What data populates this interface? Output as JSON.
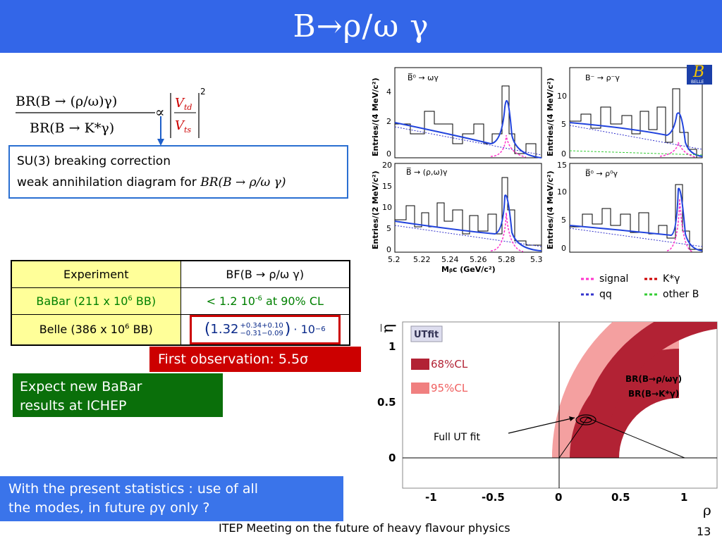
{
  "title": "B→ρ/ω γ",
  "formula": {
    "numerator": "BR(B → (ρ/ω)γ)",
    "denominator": "BR(B → K*γ)",
    "proportional": "∝",
    "vtd": "V",
    "vtd_sub": "td",
    "vts": "V",
    "vts_sub": "ts",
    "power": "2"
  },
  "note_box": {
    "line1": "SU(3) breaking correction",
    "line2_prefix": "weak annihilation diagram for ",
    "line2_italic": "BR(B → ρ/ω γ)"
  },
  "table": {
    "header": [
      "Experiment",
      "BF(B → ρ/ω γ)"
    ],
    "babar_label": "BaBar (211 x 10",
    "babar_exp": "6",
    "babar_tail": " BB)",
    "babar_value": "< 1.2 10",
    "babar_value_exp": "-6",
    "babar_value_tail": " at 90% CL",
    "belle_label": "Belle (386 x 10",
    "belle_exp": "6",
    "belle_tail": " BB)",
    "belle_central": "1.32",
    "belle_up": "+0.34+0.10",
    "belle_down": "−0.31−0.09",
    "belle_scale": "· 10",
    "belle_scale_exp": "−6"
  },
  "first_observation": "First observation: 5.5σ",
  "expect_babar": [
    "Expect new BaBar",
    "results at ICHEP"
  ],
  "present_stats": [
    "With the present statistics : use of all",
    "the modes, in future ργ only ?"
  ],
  "footer": "ITEP Meeting on the future of heavy flavour physics",
  "page_number": "13",
  "histograms": {
    "panels": [
      {
        "label": "B̅⁰ → ωγ",
        "ylabel": "Entries/(4 MeV/c²)",
        "yticks": [
          "0",
          "2",
          "4"
        ]
      },
      {
        "label": "B⁻ → ρ⁻γ",
        "ylabel": "Entries/(4 MeV/c²)",
        "yticks": [
          "0",
          "5",
          "10"
        ]
      },
      {
        "label": "B̅ → (ρ,ω)γ",
        "ylabel": "Entries/(2 MeV/c²)",
        "yticks": [
          "0",
          "5",
          "10",
          "15",
          "20"
        ]
      },
      {
        "label": "B̅⁰ → ρ⁰γ",
        "ylabel": "Entries/(4 MeV/c²)",
        "yticks": [
          "0",
          "5",
          "10",
          "15"
        ]
      }
    ],
    "xticks": [
      "5.2",
      "5.22",
      "5.24",
      "5.26",
      "5.28",
      "5.3"
    ],
    "xlabel": "Mᵦc (GeV/c²)",
    "belle_logo": "B",
    "belle_logo_sub": "BELLE"
  },
  "legend": {
    "items": [
      {
        "label": "signal",
        "color": "#ff33cc"
      },
      {
        "label": "K*γ",
        "color": "#cc0000"
      },
      {
        "label": "qq",
        "color": "#3333cc"
      },
      {
        "label": "other B",
        "color": "#33cc33"
      }
    ]
  },
  "ut_plot": {
    "logo": "UTfit",
    "y_axis_label": "η̅",
    "x_axis_label": "ρ",
    "yticks": [
      "0",
      "0.5",
      "1"
    ],
    "xticks": [
      "-1",
      "-0.5",
      "0",
      "0.5",
      "1"
    ],
    "cl68": "68%CL",
    "cl95": "95%CL",
    "band_label1": "BR(B→ρ/ωγ)",
    "band_label2": "BR(B→K*γ)",
    "fit_label": "Full UT fit",
    "color68": "#b22234",
    "color95": "#f08080"
  }
}
